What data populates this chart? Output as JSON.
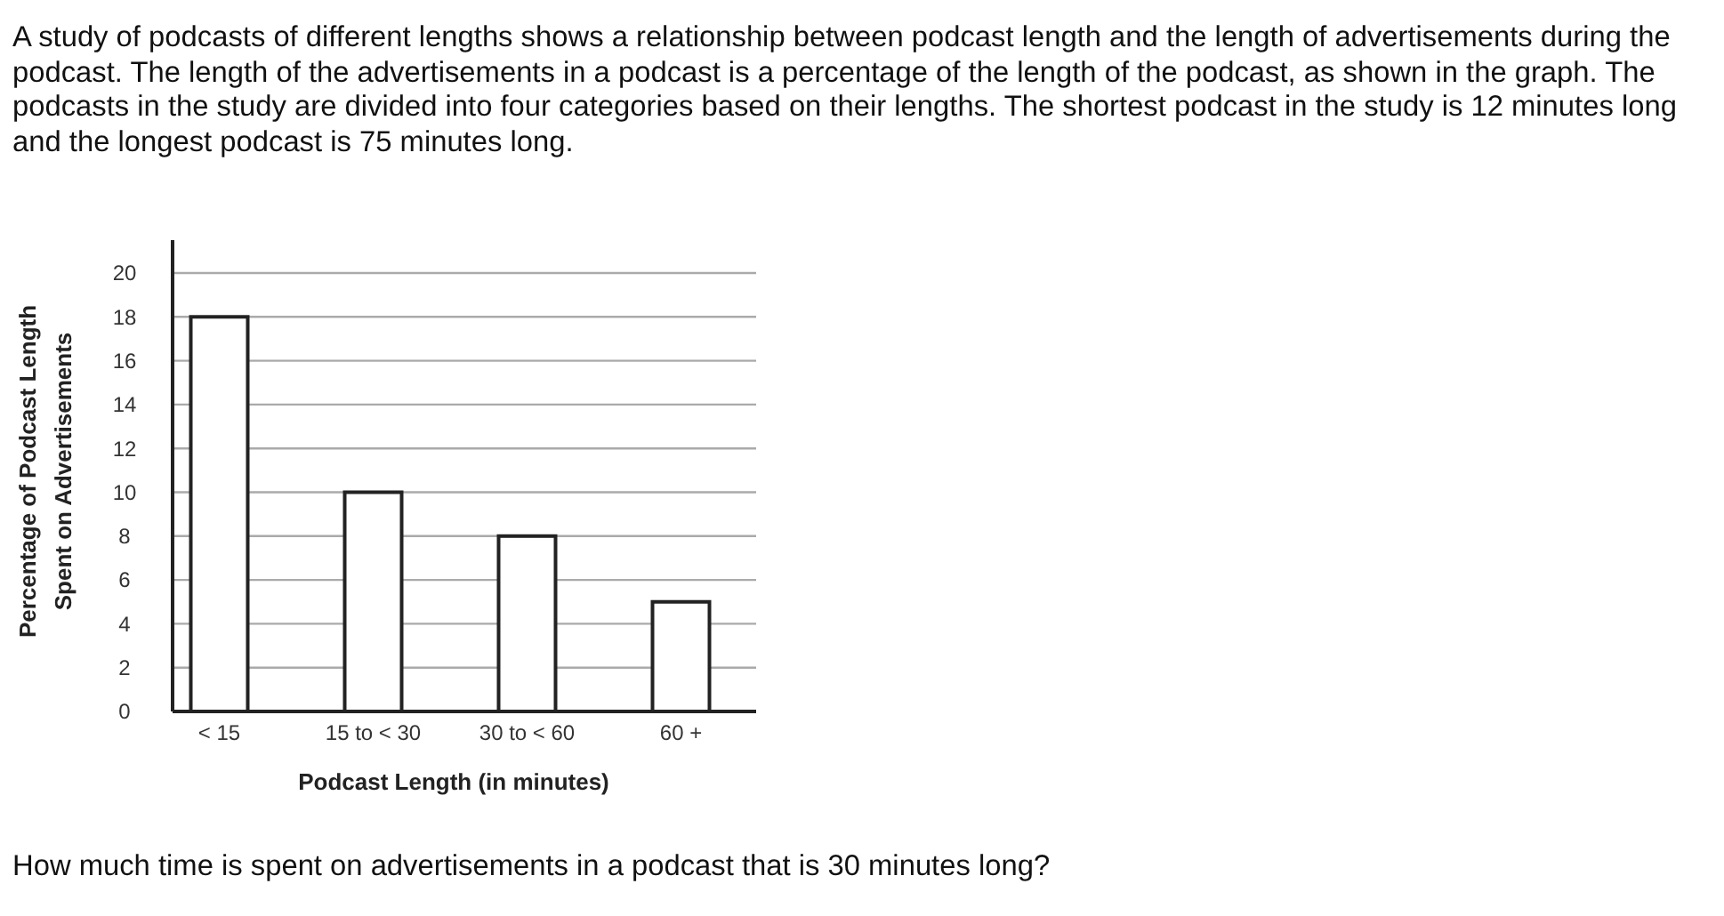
{
  "chart_data": {
    "type": "bar",
    "title": "A study of podcasts of different lengths shows a relationship between podcast length and the length of advertisements during the podcast. The length of the advertisements in a podcast is a percentage of the length of the podcast, as shown in the graph. The podcasts in the study are divided into four categories based on their lengths. The shortest podcast in the study is 12 minutes long and the longest podcast is 75 minutes long.",
    "categories": [
      "< 15",
      "15 to < 30",
      "30 to < 60",
      "60 +"
    ],
    "values": [
      18,
      10,
      8,
      5
    ],
    "color": "#ffffff",
    "xlabel": "Podcast Length (in minutes)",
    "ylabel": "Percentage of Podcast Length\nSpent on Advertisements",
    "ylim": [
      0,
      21.5
    ],
    "yticks": [
      0,
      2,
      4,
      6,
      8,
      10,
      12,
      14,
      16,
      18,
      20
    ],
    "grid": "y",
    "annotations": [
      "How much time is spent on advertisements in a podcast that is 30 minutes long?"
    ]
  }
}
